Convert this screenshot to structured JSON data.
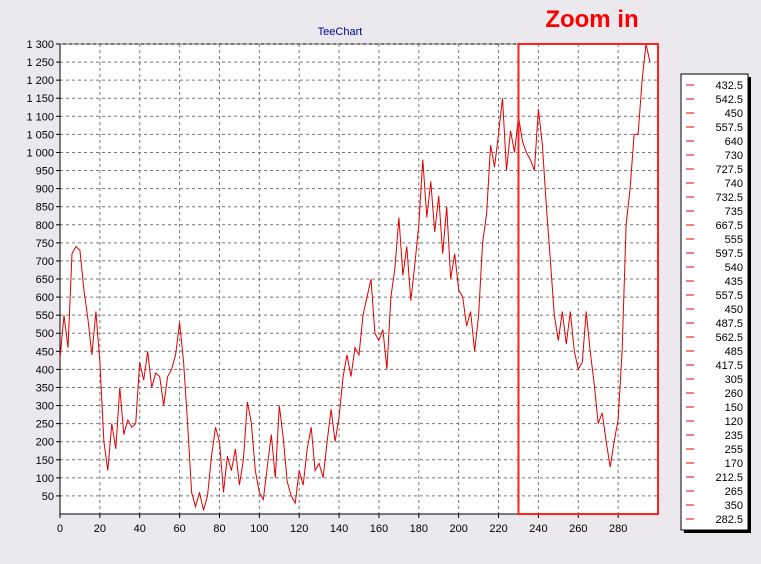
{
  "chart_data": {
    "type": "line",
    "title": "TeeChart",
    "annotation": "Zoom in",
    "xlim": [
      0,
      300
    ],
    "ylim": [
      0,
      1300
    ],
    "x_ticks": [
      0,
      20,
      40,
      60,
      80,
      100,
      120,
      140,
      160,
      180,
      200,
      220,
      240,
      260,
      280
    ],
    "x_tick_labels": [
      "0",
      "20",
      "40",
      "60",
      "80",
      "100",
      "120",
      "140",
      "160",
      "180",
      "200",
      "220",
      "240",
      "260",
      "280"
    ],
    "y_ticks": [
      50,
      100,
      150,
      200,
      250,
      300,
      350,
      400,
      450,
      500,
      550,
      600,
      650,
      700,
      750,
      800,
      850,
      900,
      950,
      1000,
      1050,
      1100,
      1150,
      1200,
      1250,
      1300
    ],
    "y_tick_labels": [
      "50",
      "100",
      "150",
      "200",
      "250",
      "300",
      "350",
      "400",
      "450",
      "500",
      "550",
      "600",
      "650",
      "700",
      "750",
      "800",
      "850",
      "900",
      "950",
      "1 000",
      "1 050",
      "1 100",
      "1 150",
      "1 200",
      "1 250",
      "1 300"
    ],
    "zoom_range": {
      "x": [
        230,
        300
      ],
      "y": [
        0,
        1300
      ]
    },
    "legend_position": "right",
    "legend_entries": [
      "432.5",
      "542.5",
      "450",
      "557.5",
      "640",
      "730",
      "727.5",
      "740",
      "732.5",
      "735",
      "667.5",
      "555",
      "597.5",
      "540",
      "435",
      "557.5",
      "450",
      "487.5",
      "562.5",
      "485",
      "417.5",
      "305",
      "260",
      "150",
      "120",
      "235",
      "255",
      "170",
      "212.5",
      "265",
      "350",
      "282.5"
    ],
    "series": [
      {
        "color": "#e00000",
        "points": [
          [
            0,
            430
          ],
          [
            2,
            550
          ],
          [
            4,
            460
          ],
          [
            6,
            720
          ],
          [
            8,
            740
          ],
          [
            10,
            730
          ],
          [
            12,
            620
          ],
          [
            14,
            540
          ],
          [
            16,
            440
          ],
          [
            18,
            560
          ],
          [
            20,
            420
          ],
          [
            22,
            200
          ],
          [
            24,
            120
          ],
          [
            26,
            250
          ],
          [
            28,
            180
          ],
          [
            30,
            350
          ],
          [
            32,
            220
          ],
          [
            34,
            260
          ],
          [
            36,
            240
          ],
          [
            38,
            250
          ],
          [
            40,
            420
          ],
          [
            42,
            370
          ],
          [
            44,
            450
          ],
          [
            46,
            350
          ],
          [
            48,
            390
          ],
          [
            50,
            380
          ],
          [
            52,
            300
          ],
          [
            54,
            380
          ],
          [
            56,
            400
          ],
          [
            58,
            440
          ],
          [
            60,
            530
          ],
          [
            62,
            420
          ],
          [
            64,
            250
          ],
          [
            66,
            60
          ],
          [
            68,
            20
          ],
          [
            70,
            60
          ],
          [
            72,
            10
          ],
          [
            74,
            50
          ],
          [
            76,
            160
          ],
          [
            78,
            240
          ],
          [
            80,
            200
          ],
          [
            82,
            60
          ],
          [
            84,
            160
          ],
          [
            86,
            120
          ],
          [
            88,
            180
          ],
          [
            90,
            80
          ],
          [
            92,
            150
          ],
          [
            94,
            310
          ],
          [
            96,
            250
          ],
          [
            98,
            120
          ],
          [
            100,
            60
          ],
          [
            102,
            40
          ],
          [
            104,
            130
          ],
          [
            106,
            220
          ],
          [
            108,
            100
          ],
          [
            110,
            300
          ],
          [
            112,
            210
          ],
          [
            114,
            90
          ],
          [
            116,
            50
          ],
          [
            118,
            30
          ],
          [
            120,
            120
          ],
          [
            122,
            80
          ],
          [
            124,
            180
          ],
          [
            126,
            240
          ],
          [
            128,
            120
          ],
          [
            130,
            140
          ],
          [
            132,
            100
          ],
          [
            134,
            200
          ],
          [
            136,
            290
          ],
          [
            138,
            200
          ],
          [
            140,
            270
          ],
          [
            142,
            380
          ],
          [
            144,
            440
          ],
          [
            146,
            380
          ],
          [
            148,
            460
          ],
          [
            150,
            440
          ],
          [
            152,
            550
          ],
          [
            154,
            600
          ],
          [
            156,
            650
          ],
          [
            158,
            500
          ],
          [
            160,
            480
          ],
          [
            162,
            510
          ],
          [
            164,
            400
          ],
          [
            166,
            600
          ],
          [
            168,
            680
          ],
          [
            170,
            820
          ],
          [
            172,
            660
          ],
          [
            174,
            740
          ],
          [
            176,
            590
          ],
          [
            178,
            690
          ],
          [
            180,
            800
          ],
          [
            182,
            980
          ],
          [
            184,
            820
          ],
          [
            186,
            920
          ],
          [
            188,
            780
          ],
          [
            190,
            880
          ],
          [
            192,
            720
          ],
          [
            194,
            850
          ],
          [
            196,
            650
          ],
          [
            198,
            720
          ],
          [
            200,
            620
          ],
          [
            202,
            600
          ],
          [
            204,
            520
          ],
          [
            206,
            560
          ],
          [
            208,
            450
          ],
          [
            210,
            550
          ],
          [
            212,
            750
          ],
          [
            214,
            830
          ],
          [
            216,
            1020
          ],
          [
            218,
            960
          ],
          [
            220,
            1050
          ],
          [
            222,
            1150
          ],
          [
            224,
            950
          ],
          [
            226,
            1060
          ],
          [
            228,
            1000
          ],
          [
            230,
            1100
          ],
          [
            232,
            1030
          ],
          [
            234,
            1000
          ],
          [
            236,
            980
          ],
          [
            238,
            950
          ],
          [
            240,
            1120
          ],
          [
            242,
            1020
          ],
          [
            244,
            850
          ],
          [
            246,
            700
          ],
          [
            248,
            550
          ],
          [
            250,
            480
          ],
          [
            252,
            560
          ],
          [
            254,
            470
          ],
          [
            256,
            560
          ],
          [
            258,
            450
          ],
          [
            260,
            400
          ],
          [
            262,
            420
          ],
          [
            264,
            560
          ],
          [
            266,
            450
          ],
          [
            268,
            360
          ],
          [
            270,
            250
          ],
          [
            272,
            280
          ],
          [
            274,
            200
          ],
          [
            276,
            130
          ],
          [
            278,
            200
          ],
          [
            280,
            260
          ],
          [
            282,
            450
          ],
          [
            284,
            800
          ],
          [
            286,
            900
          ],
          [
            288,
            1050
          ],
          [
            290,
            1050
          ],
          [
            292,
            1200
          ],
          [
            294,
            1300
          ],
          [
            296,
            1250
          ]
        ]
      }
    ]
  }
}
